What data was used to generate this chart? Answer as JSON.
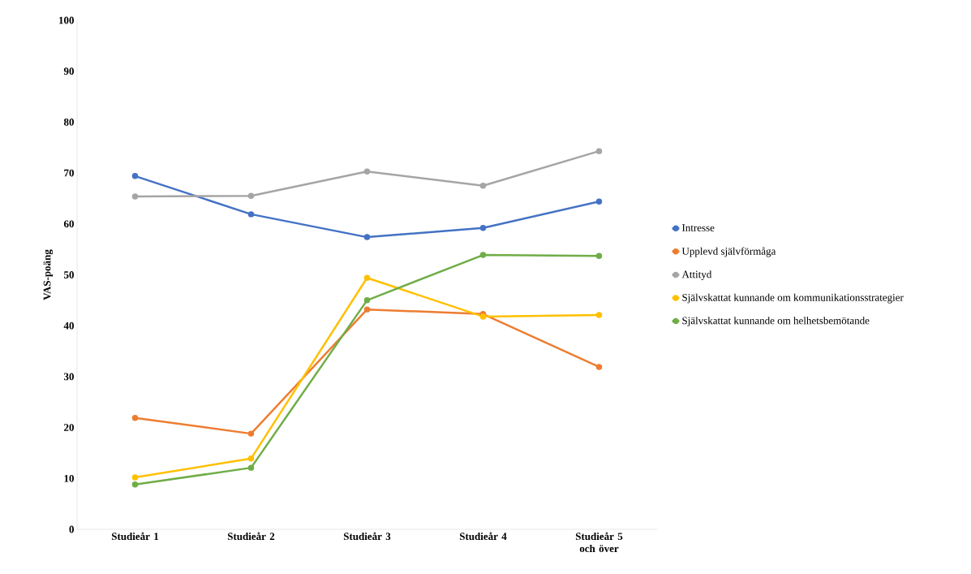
{
  "chart_data": {
    "type": "line",
    "ylabel": "VAS-poäng",
    "categories": [
      "Studieår 1",
      "Studieår 2",
      "Studieår 3",
      "Studieår 4",
      "Studieår 5 och över"
    ],
    "series": [
      {
        "name": "Intresse",
        "color": "#4472c4",
        "values": [
          69.4,
          61.9,
          57.4,
          59.2,
          64.4
        ]
      },
      {
        "name": "Upplevd självförmåga",
        "color": "#ed7d31",
        "values": [
          21.9,
          18.8,
          43.2,
          42.3,
          31.9
        ]
      },
      {
        "name": "Attityd",
        "color": "#a5a5a5",
        "values": [
          65.4,
          65.5,
          70.3,
          67.5,
          74.3
        ]
      },
      {
        "name": "Självskattat kunnande om kommunikationsstrategier",
        "color": "#ffc000",
        "values": [
          10.2,
          13.9,
          49.4,
          41.8,
          42.1
        ]
      },
      {
        "name": "Självskattat kunnande om helhetsbemötande",
        "color": "#70ad47",
        "values": [
          8.8,
          12.1,
          45.0,
          53.9,
          53.7
        ]
      }
    ],
    "ylim": [
      0,
      100
    ],
    "yticks": [
      0,
      10,
      20,
      30,
      40,
      50,
      60,
      70,
      80,
      90,
      100
    ],
    "grid": false,
    "legend": "right",
    "marker": "circle",
    "line_style": "solid"
  }
}
